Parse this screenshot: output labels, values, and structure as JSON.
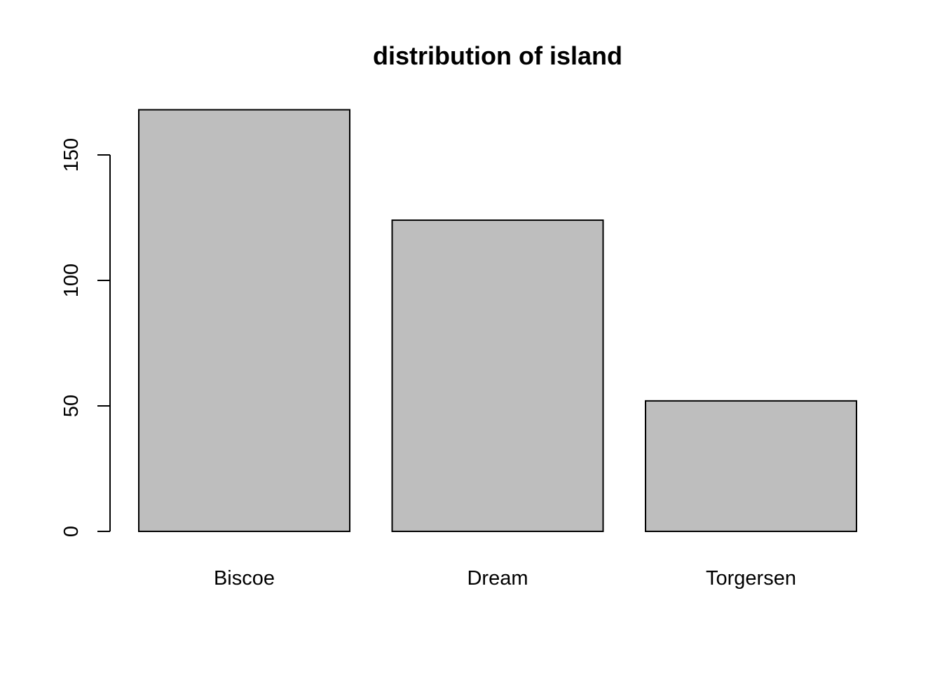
{
  "chart_data": {
    "type": "bar",
    "title": "distribution of island",
    "xlabel": "",
    "ylabel": "",
    "categories": [
      "Biscoe",
      "Dream",
      "Torgersen"
    ],
    "values": [
      168,
      124,
      52
    ],
    "ylim": [
      0,
      168
    ],
    "yticks": [
      0,
      50,
      100,
      150
    ],
    "ytick_labels": [
      "0",
      "50",
      "100",
      "150"
    ],
    "grid": false,
    "colors": {
      "bar_fill": "#bebebe",
      "bar_stroke": "#000000"
    }
  }
}
